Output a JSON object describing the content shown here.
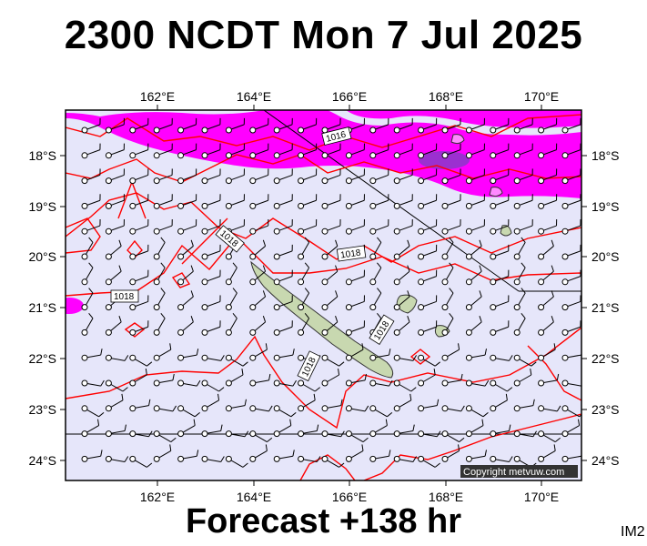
{
  "title": "2300 NCDT Mon 7 Jul 2025",
  "footer": "Forecast +138 hr",
  "corner_tag": "IM2",
  "copyright": "Copyright metvuw.com",
  "map": {
    "lon_ticks": [
      "162°E",
      "164°E",
      "166°E",
      "168°E",
      "170°E"
    ],
    "lat_ticks": [
      "18°S",
      "19°S",
      "20°S",
      "21°S",
      "22°S",
      "23°S",
      "24°S"
    ],
    "isobar_labels": [
      "1016",
      "1018",
      "1018",
      "1018",
      "1018",
      "1018"
    ],
    "colors": {
      "background": "#e6e6fa",
      "rain_light": "#ff00ff",
      "rain_heavy": "#9b30d0",
      "isobar": "#ff0000",
      "land": "#c8d8b0"
    }
  }
}
